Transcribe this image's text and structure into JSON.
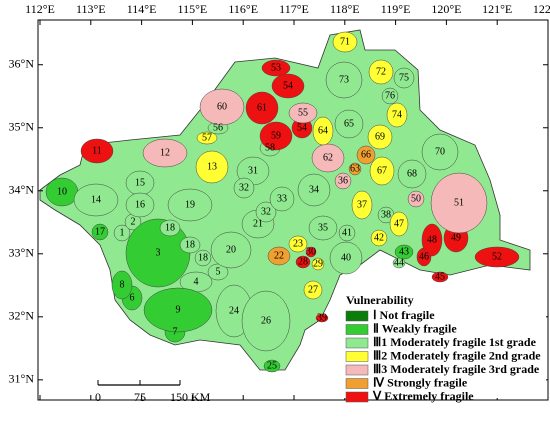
{
  "map": {
    "xlim": [
      112,
      122
    ],
    "ylim": [
      30.68,
      36.71
    ],
    "xticks": [
      {
        "value": 112,
        "label": "112°E"
      },
      {
        "value": 113,
        "label": "113°E"
      },
      {
        "value": 114,
        "label": "114°E"
      },
      {
        "value": 115,
        "label": "115°E"
      },
      {
        "value": 116,
        "label": "116°E"
      },
      {
        "value": 117,
        "label": "117°E"
      },
      {
        "value": 118,
        "label": "118°E"
      },
      {
        "value": 119,
        "label": "119°E"
      },
      {
        "value": 120,
        "label": "120°E"
      },
      {
        "value": 121,
        "label": "121°E"
      },
      {
        "value": 122,
        "label": "122°E"
      }
    ],
    "yticks": [
      {
        "value": 31,
        "label": "31°N"
      },
      {
        "value": 32,
        "label": "32°N"
      },
      {
        "value": 33,
        "label": "33°N"
      },
      {
        "value": 34,
        "label": "34°N"
      },
      {
        "value": 35,
        "label": "35°N"
      },
      {
        "value": 36,
        "label": "36°N"
      }
    ],
    "legend": {
      "title": "Vulnerability",
      "items": [
        {
          "label": "Ⅰ Not fragile",
          "color": "#0b7d0b"
        },
        {
          "label": "Ⅱ Weakly fragile",
          "color": "#33cc33"
        },
        {
          "label": "Ⅲ1 Moderately fragile 1st grade",
          "color": "#90e890"
        },
        {
          "label": "Ⅲ2 Moderately fragile 2nd grade",
          "color": "#ffff33"
        },
        {
          "label": "Ⅲ3 Moderately fragile 3rd grade",
          "color": "#f5b9b9"
        },
        {
          "label": "Ⅳ Strongly fragile",
          "color": "#f0a030"
        },
        {
          "label": "Ⅴ Extremely fragile",
          "color": "#ee1111"
        }
      ]
    },
    "scale_bar": {
      "labels": [
        "0",
        "75",
        "150 KM"
      ]
    },
    "regions": [
      {
        "label": "1",
        "color": "#90e890"
      },
      {
        "label": "2",
        "color": "#90e890"
      },
      {
        "label": "3",
        "color": "#33cc33"
      },
      {
        "label": "4",
        "color": "#90e890"
      },
      {
        "label": "5",
        "color": "#90e890"
      },
      {
        "label": "6",
        "color": "#33cc33"
      },
      {
        "label": "7",
        "color": "#33cc33"
      },
      {
        "label": "8",
        "color": "#33cc33"
      },
      {
        "label": "9",
        "color": "#33cc33"
      },
      {
        "label": "10",
        "color": "#33cc33"
      },
      {
        "label": "11",
        "color": "#ee1111"
      },
      {
        "label": "12",
        "color": "#f5b9b9"
      },
      {
        "label": "13",
        "color": "#ffff33"
      },
      {
        "label": "14",
        "color": "#90e890"
      },
      {
        "label": "15",
        "color": "#90e890"
      },
      {
        "label": "16",
        "color": "#90e890"
      },
      {
        "label": "17",
        "color": "#33cc33"
      },
      {
        "label": "18",
        "color": "#90e890"
      },
      {
        "label": "18",
        "color": "#90e890"
      },
      {
        "label": "18",
        "color": "#90e890"
      },
      {
        "label": "19",
        "color": "#90e890"
      },
      {
        "label": "20",
        "color": "#90e890"
      },
      {
        "label": "21",
        "color": "#90e890"
      },
      {
        "label": "22",
        "color": "#f0a030"
      },
      {
        "label": "23",
        "color": "#ffff33"
      },
      {
        "label": "24",
        "color": "#90e890"
      },
      {
        "label": "25",
        "color": "#33cc33"
      },
      {
        "label": "26",
        "color": "#90e890"
      },
      {
        "label": "27",
        "color": "#ffff33"
      },
      {
        "label": "28",
        "color": "#ee1111"
      },
      {
        "label": "29",
        "color": "#ffff33"
      },
      {
        "label": "30",
        "color": "#ee1111"
      },
      {
        "label": "31",
        "color": "#90e890"
      },
      {
        "label": "32",
        "color": "#90e890"
      },
      {
        "label": "32",
        "color": "#90e890"
      },
      {
        "label": "33",
        "color": "#90e890"
      },
      {
        "label": "34",
        "color": "#90e890"
      },
      {
        "label": "35",
        "color": "#90e890"
      },
      {
        "label": "36",
        "color": "#f5b9b9"
      },
      {
        "label": "37",
        "color": "#ffff33"
      },
      {
        "label": "38",
        "color": "#90e890"
      },
      {
        "label": "39",
        "color": "#ee1111"
      },
      {
        "label": "40",
        "color": "#90e890"
      },
      {
        "label": "41",
        "color": "#90e890"
      },
      {
        "label": "42",
        "color": "#ffff33"
      },
      {
        "label": "43",
        "color": "#33cc33"
      },
      {
        "label": "44",
        "color": "#90e890"
      },
      {
        "label": "45",
        "color": "#ee1111"
      },
      {
        "label": "46",
        "color": "#ee1111"
      },
      {
        "label": "47",
        "color": "#ffff33"
      },
      {
        "label": "48",
        "color": "#ee1111"
      },
      {
        "label": "49",
        "color": "#ee1111"
      },
      {
        "label": "50",
        "color": "#f5b9b9"
      },
      {
        "label": "51",
        "color": "#f5b9b9"
      },
      {
        "label": "52",
        "color": "#ee1111"
      },
      {
        "label": "53",
        "color": "#ee1111"
      },
      {
        "label": "54",
        "color": "#ee1111"
      },
      {
        "label": "54",
        "color": "#ee1111"
      },
      {
        "label": "55",
        "color": "#f5b9b9"
      },
      {
        "label": "56",
        "color": "#90e890"
      },
      {
        "label": "57",
        "color": "#ffff33"
      },
      {
        "label": "58",
        "color": "#90e890"
      },
      {
        "label": "59",
        "color": "#ee1111"
      },
      {
        "label": "60",
        "color": "#f5b9b9"
      },
      {
        "label": "61",
        "color": "#ee1111"
      },
      {
        "label": "62",
        "color": "#f5b9b9"
      },
      {
        "label": "63",
        "color": "#f0a030"
      },
      {
        "label": "64",
        "color": "#ffff33"
      },
      {
        "label": "65",
        "color": "#90e890"
      },
      {
        "label": "66",
        "color": "#f0a030"
      },
      {
        "label": "67",
        "color": "#ffff33"
      },
      {
        "label": "68",
        "color": "#90e890"
      },
      {
        "label": "69",
        "color": "#ffff33"
      },
      {
        "label": "70",
        "color": "#90e890"
      },
      {
        "label": "71",
        "color": "#ffff33"
      },
      {
        "label": "72",
        "color": "#ffff33"
      },
      {
        "label": "73",
        "color": "#90e890"
      },
      {
        "label": "74",
        "color": "#ffff33"
      },
      {
        "label": "75",
        "color": "#90e890"
      },
      {
        "label": "76",
        "color": "#90e890"
      }
    ]
  }
}
